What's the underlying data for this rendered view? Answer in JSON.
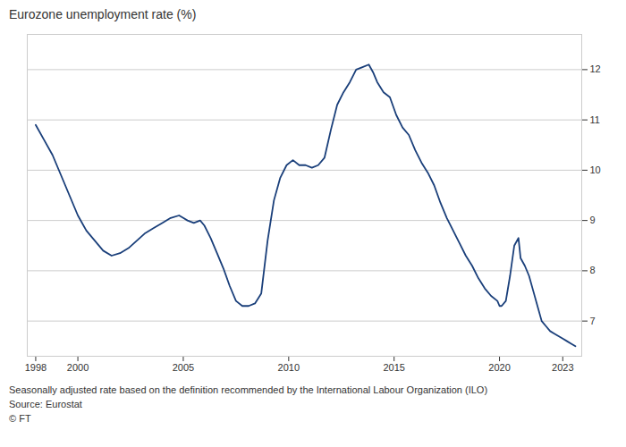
{
  "chart_data": {
    "type": "line",
    "title": "Eurozone unemployment rate (%)",
    "x": [
      1998.0,
      1998.4,
      1998.8,
      1999.2,
      1999.6,
      2000.0,
      2000.4,
      2000.8,
      2001.2,
      2001.6,
      2002.0,
      2002.4,
      2002.8,
      2003.2,
      2003.6,
      2004.0,
      2004.4,
      2004.8,
      2005.0,
      2005.2,
      2005.5,
      2005.8,
      2006.0,
      2006.3,
      2006.6,
      2006.9,
      2007.2,
      2007.5,
      2007.8,
      2008.1,
      2008.4,
      2008.7,
      2009.0,
      2009.3,
      2009.6,
      2009.9,
      2010.2,
      2010.5,
      2010.8,
      2011.1,
      2011.4,
      2011.7,
      2012.0,
      2012.3,
      2012.6,
      2012.9,
      2013.2,
      2013.5,
      2013.8,
      2014.0,
      2014.2,
      2014.5,
      2014.8,
      2015.1,
      2015.4,
      2015.7,
      2016.0,
      2016.3,
      2016.6,
      2016.9,
      2017.2,
      2017.5,
      2017.8,
      2018.1,
      2018.4,
      2018.7,
      2019.0,
      2019.3,
      2019.6,
      2019.9,
      2020.0,
      2020.1,
      2020.3,
      2020.5,
      2020.7,
      2020.9,
      2021.0,
      2021.2,
      2021.4,
      2021.6,
      2021.8,
      2022.0,
      2022.2,
      2022.4,
      2022.6,
      2022.8,
      2023.0,
      2023.2,
      2023.4,
      2023.6
    ],
    "values": [
      10.9,
      10.6,
      10.3,
      9.9,
      9.5,
      9.1,
      8.8,
      8.6,
      8.4,
      8.3,
      8.35,
      8.45,
      8.6,
      8.75,
      8.85,
      8.95,
      9.05,
      9.1,
      9.05,
      9.0,
      8.95,
      9.0,
      8.9,
      8.65,
      8.35,
      8.05,
      7.7,
      7.4,
      7.3,
      7.3,
      7.35,
      7.55,
      8.6,
      9.4,
      9.85,
      10.1,
      10.2,
      10.1,
      10.1,
      10.05,
      10.1,
      10.25,
      10.8,
      11.3,
      11.55,
      11.75,
      12.0,
      12.05,
      12.1,
      11.95,
      11.75,
      11.55,
      11.45,
      11.1,
      10.85,
      10.7,
      10.4,
      10.15,
      9.95,
      9.7,
      9.35,
      9.05,
      8.8,
      8.55,
      8.3,
      8.1,
      7.85,
      7.65,
      7.5,
      7.4,
      7.3,
      7.3,
      7.4,
      7.9,
      8.5,
      8.65,
      8.25,
      8.1,
      7.9,
      7.6,
      7.3,
      7.0,
      6.9,
      6.8,
      6.75,
      6.7,
      6.65,
      6.6,
      6.55,
      6.5
    ],
    "color": "#1a3f7a",
    "xlim": [
      1997.6,
      2023.9
    ],
    "xticks": [
      1998,
      2000,
      2005,
      2010,
      2015,
      2020,
      2023
    ],
    "ylim": [
      6.3,
      12.7
    ],
    "yticks": [
      7,
      8,
      9,
      10,
      11,
      12
    ],
    "grid": true,
    "annotations": [
      "Seasonally adjusted rate based on the definition recommended by the International Labour Organization (ILO)",
      "Source: Eurostat",
      "© FT"
    ]
  }
}
